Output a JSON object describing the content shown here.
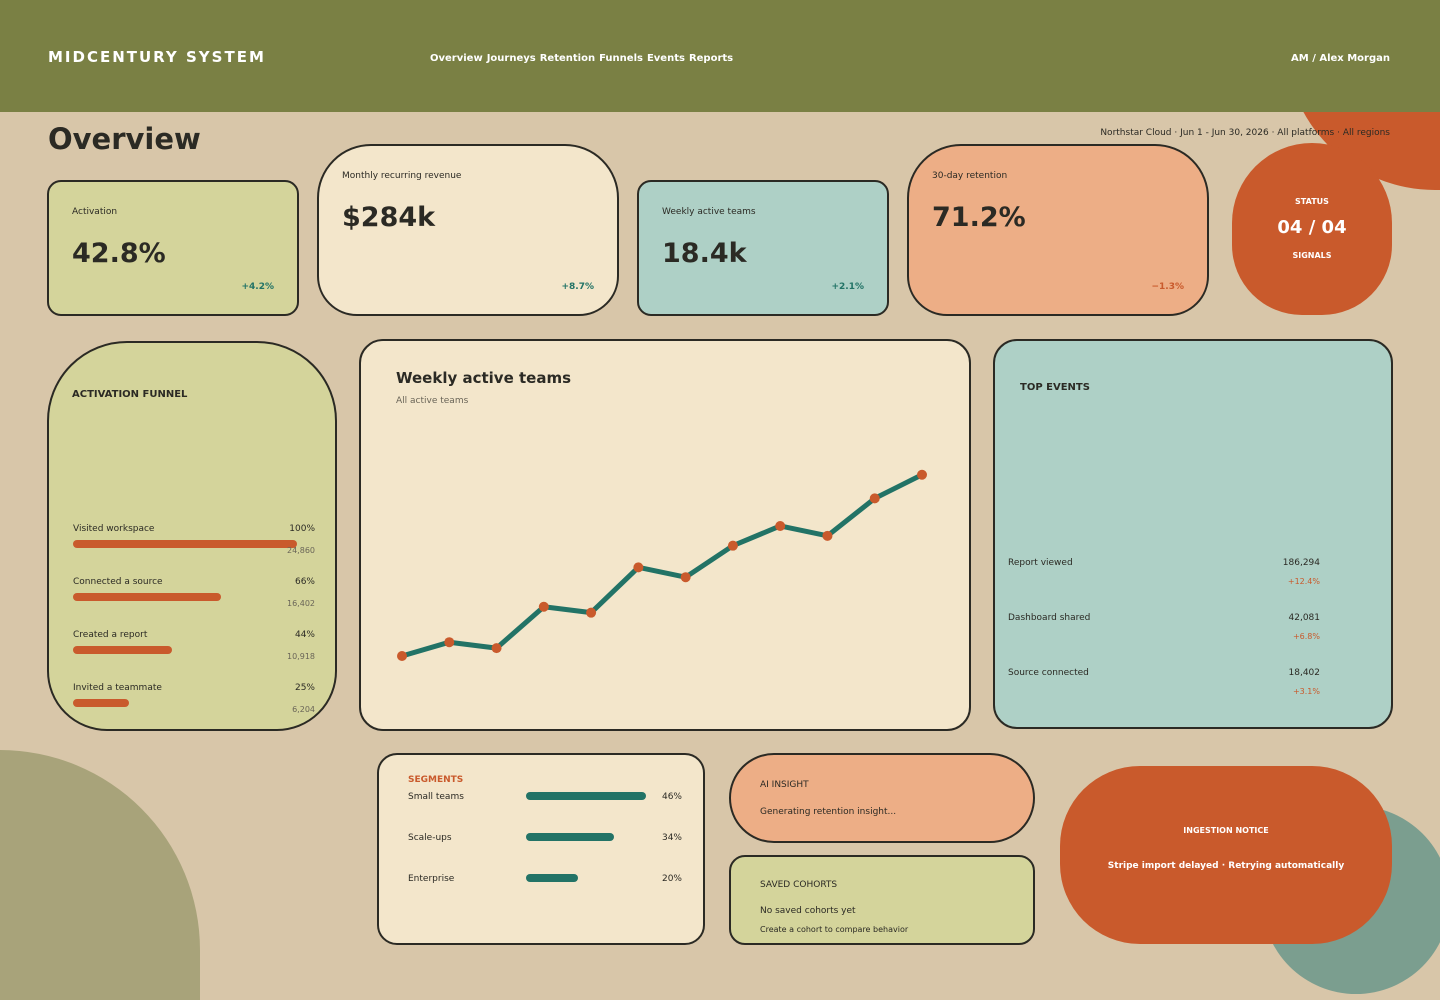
{
  "header": {
    "brand": "MIDCENTURY SYSTEM",
    "nav": [
      "Overview",
      "Journeys",
      "Retention",
      "Funnels",
      "Events",
      "Reports"
    ],
    "user": "AM / Alex Morgan"
  },
  "page": {
    "title": "Overview",
    "context": "Northstar Cloud · Jun 1 - Jun 30, 2026 · All platforms · All regions"
  },
  "kpis": [
    {
      "label": "Activation",
      "value": "42.8%",
      "delta": "+4.2%"
    },
    {
      "label": "Monthly recurring revenue",
      "value": "$284k",
      "delta": "+8.7%"
    },
    {
      "label": "Weekly active teams",
      "value": "18.4k",
      "delta": "+2.1%"
    },
    {
      "label": "30-day retention",
      "value": "71.2%",
      "delta": "−1.3%"
    }
  ],
  "status": {
    "label": "STATUS",
    "value": "04 / 04",
    "sub": "SIGNALS"
  },
  "funnel": {
    "title": "ACTIVATION FUNNEL",
    "steps": [
      {
        "name": "Visited workspace",
        "pct": "100%",
        "count": "24,860",
        "fill": 1.0
      },
      {
        "name": "Connected a source",
        "pct": "66%",
        "count": "16,402",
        "fill": 0.66
      },
      {
        "name": "Created a report",
        "pct": "44%",
        "count": "10,918",
        "fill": 0.44
      },
      {
        "name": "Invited a teammate",
        "pct": "25%",
        "count": "6,204",
        "fill": 0.25
      }
    ]
  },
  "chart_data": {
    "type": "line",
    "title": "Weekly active teams",
    "subtitle": "All active teams",
    "values": [
      0.0,
      0.07,
      0.04,
      0.25,
      0.22,
      0.45,
      0.4,
      0.56,
      0.66,
      0.61,
      0.8,
      0.92
    ],
    "colors": {
      "line": "#227366",
      "point": "#c95a2c"
    }
  },
  "events": {
    "title": "TOP EVENTS",
    "rows": [
      {
        "name": "Report viewed",
        "count": "186,294",
        "delta": "+12.4%"
      },
      {
        "name": "Dashboard shared",
        "count": "42,081",
        "delta": "+6.8%"
      },
      {
        "name": "Source connected",
        "count": "18,402",
        "delta": "+3.1%"
      }
    ]
  },
  "segments": {
    "title": "SEGMENTS",
    "rows": [
      {
        "name": "Small teams",
        "pct": "46%",
        "fill": 0.46
      },
      {
        "name": "Scale-ups",
        "pct": "34%",
        "fill": 0.34
      },
      {
        "name": "Enterprise",
        "pct": "20%",
        "fill": 0.2
      }
    ]
  },
  "insight": {
    "title": "AI INSIGHT",
    "text": "Generating retention insight..."
  },
  "cohorts": {
    "title": "SAVED COHORTS",
    "empty": "No saved cohorts yet",
    "hint": "Create a cohort to compare behavior"
  },
  "notice": {
    "title": "INGESTION NOTICE",
    "text": "Stripe import delayed · Retrying automatically"
  }
}
